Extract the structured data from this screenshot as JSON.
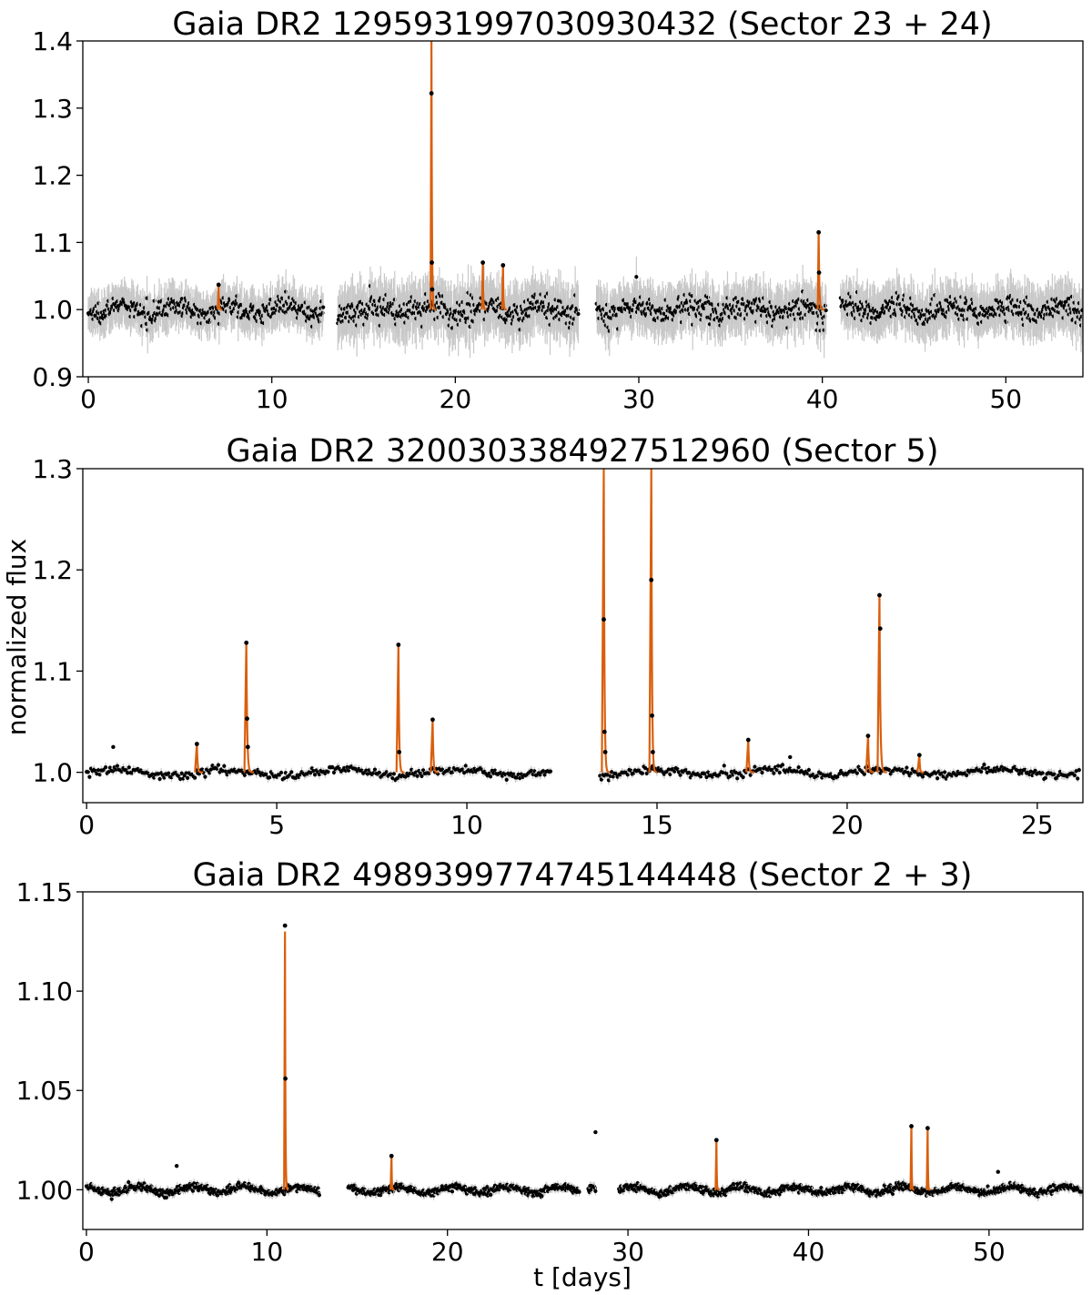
{
  "figure": {
    "ylabel": "normalized flux",
    "xlabel": "t [days]"
  },
  "chart_data": [
    {
      "type": "scatter",
      "title": "Gaia DR2 1295931997030930432 (Sector 23 + 24)",
      "xlim": [
        -0.3,
        54.2
      ],
      "ylim": [
        0.9,
        1.4
      ],
      "xticks": [
        0,
        10,
        20,
        30,
        40,
        50
      ],
      "yticks": [
        0.9,
        1.0,
        1.1,
        1.2,
        1.3,
        1.4
      ],
      "ytick_labels": [
        "0.9",
        "1.0",
        "1.1",
        "1.2",
        "1.3",
        "1.4"
      ],
      "grid": false,
      "colors": {
        "points": "#000000",
        "errorbars": "#c8c8c8",
        "flare_fit": "#d95f0e"
      },
      "segments": [
        {
          "x": [
            0.0,
            12.8
          ],
          "scatter": 0.014,
          "error": 0.03
        },
        {
          "x": [
            13.6,
            26.7
          ],
          "scatter": 0.02,
          "error": 0.04
        },
        {
          "x": [
            27.7,
            40.2
          ],
          "scatter": 0.018,
          "error": 0.035
        },
        {
          "x": [
            41.0,
            54.2
          ],
          "scatter": 0.018,
          "error": 0.035
        }
      ],
      "flares": [
        {
          "t": 7.1,
          "peak": 1.037,
          "decay": 0.05
        },
        {
          "t": 18.7,
          "peak": 1.4,
          "decay": 0.06,
          "points": [
            1.322,
            1.07,
            1.03
          ]
        },
        {
          "t": 21.5,
          "peak": 1.07,
          "decay": 0.05
        },
        {
          "t": 22.6,
          "peak": 1.066,
          "decay": 0.05
        },
        {
          "t": 39.8,
          "peak": 1.115,
          "decay": 0.08,
          "points": [
            1.115,
            1.055
          ]
        }
      ]
    },
    {
      "type": "scatter",
      "title": "Gaia DR2 3200303384927512960 (Sector 5)",
      "xlim": [
        -0.1,
        26.2
      ],
      "ylim": [
        0.97,
        1.3
      ],
      "xticks": [
        0,
        5,
        10,
        15,
        20,
        25
      ],
      "yticks": [
        1.0,
        1.1,
        1.2,
        1.3
      ],
      "ytick_labels": [
        "1.0",
        "1.1",
        "1.2",
        "1.3"
      ],
      "grid": false,
      "colors": {
        "points": "#000000",
        "errorbars": "#c8c8c8",
        "flare_fit": "#d95f0e"
      },
      "segments": [
        {
          "x": [
            0.0,
            12.2
          ],
          "scatter": 0.004,
          "error": 0.004
        },
        {
          "x": [
            13.5,
            26.1
          ],
          "scatter": 0.004,
          "error": 0.004
        }
      ],
      "flares": [
        {
          "t": 2.9,
          "peak": 1.028,
          "decay": 0.04
        },
        {
          "t": 4.2,
          "peak": 1.128,
          "decay": 0.05,
          "points": [
            1.128,
            1.053,
            1.025
          ]
        },
        {
          "t": 8.2,
          "peak": 1.126,
          "decay": 0.04,
          "points": [
            1.126,
            1.02
          ]
        },
        {
          "t": 9.1,
          "peak": 1.052,
          "decay": 0.04
        },
        {
          "t": 13.6,
          "peak": 1.3,
          "decay": 0.04,
          "points": [
            1.151,
            1.04,
            1.02
          ]
        },
        {
          "t": 14.85,
          "peak": 1.3,
          "decay": 0.04,
          "points": [
            1.19,
            1.056,
            1.02
          ]
        },
        {
          "t": 17.4,
          "peak": 1.032,
          "decay": 0.04
        },
        {
          "t": 20.55,
          "peak": 1.036,
          "decay": 0.04
        },
        {
          "t": 20.85,
          "peak": 1.175,
          "decay": 0.05,
          "points": [
            1.175,
            1.142
          ]
        },
        {
          "t": 21.9,
          "peak": 1.017,
          "decay": 0.03
        }
      ],
      "outliers": [
        [
          0.7,
          1.025
        ],
        [
          18.5,
          1.015
        ]
      ]
    },
    {
      "type": "scatter",
      "title": "Gaia DR2 4989399774745144448 (Sector 2 + 3)",
      "xlim": [
        -0.2,
        55.2
      ],
      "ylim": [
        0.98,
        1.15
      ],
      "xticks": [
        0,
        10,
        20,
        30,
        40,
        50
      ],
      "yticks": [
        1.0,
        1.05,
        1.1,
        1.15
      ],
      "ytick_labels": [
        "1.00",
        "1.05",
        "1.10",
        "1.15"
      ],
      "grid": false,
      "colors": {
        "points": "#000000",
        "errorbars": "#c8c8c8",
        "flare_fit": "#d95f0e"
      },
      "segments": [
        {
          "x": [
            0.0,
            12.9
          ],
          "scatter": 0.0018,
          "error": 0.002
        },
        {
          "x": [
            14.5,
            27.3
          ],
          "scatter": 0.0018,
          "error": 0.002
        },
        {
          "x": [
            27.8,
            28.2
          ],
          "scatter": 0.002,
          "error": 0.002
        },
        {
          "x": [
            29.5,
            55.1
          ],
          "scatter": 0.0018,
          "error": 0.002
        }
      ],
      "flares": [
        {
          "t": 11.0,
          "peak": 1.13,
          "decay": 0.05,
          "points": [
            1.133,
            1.056
          ]
        },
        {
          "t": 16.9,
          "peak": 1.017,
          "decay": 0.04
        },
        {
          "t": 34.9,
          "peak": 1.025,
          "decay": 0.04
        },
        {
          "t": 45.7,
          "peak": 1.032,
          "decay": 0.04
        },
        {
          "t": 46.6,
          "peak": 1.031,
          "decay": 0.04
        }
      ],
      "outliers": [
        [
          28.2,
          1.029
        ],
        [
          5.0,
          1.012
        ],
        [
          50.5,
          1.009
        ]
      ]
    }
  ]
}
